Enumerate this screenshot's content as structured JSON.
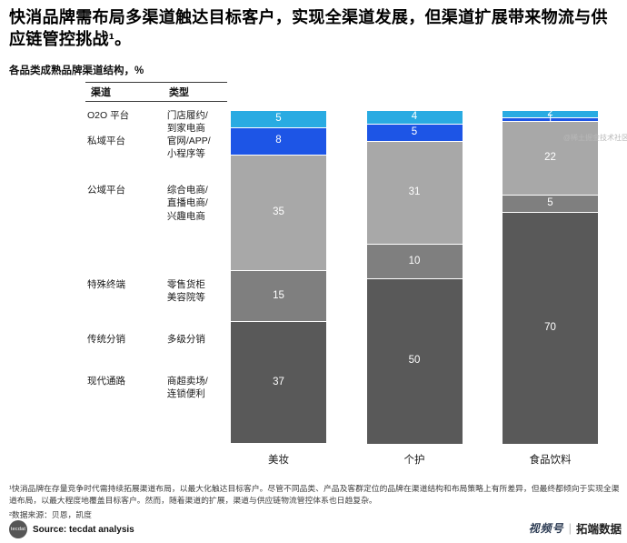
{
  "title": "快消品牌需布局多渠道触达目标客户，实现全渠道发展，但渠道扩展带来物流与供应链管控挑战¹。",
  "subtitle": "各品类成熟品牌渠道结构，%",
  "legend": {
    "header": {
      "channel": "渠道",
      "type": "类型"
    },
    "rows": [
      {
        "channel": "O2O 平台",
        "type": "门店履约/\n到家电商"
      },
      {
        "channel": "私域平台",
        "type": "官网/APP/\n小程序等"
      },
      {
        "channel": "公域平台",
        "type": "综合电商/\n直播电商/\n兴趣电商"
      },
      {
        "channel": "特殊终端",
        "type": "零售货柜\n美容院等"
      },
      {
        "channel": "传统分销",
        "type": "多级分销"
      },
      {
        "channel": "现代通路",
        "type": "商超卖场/\n连锁便利"
      }
    ]
  },
  "chart_data": {
    "type": "bar",
    "stacked": true,
    "title": "各品类成熟品牌渠道结构",
    "unit": "%",
    "ylim": [
      0,
      100
    ],
    "categories": [
      "美妆",
      "个护",
      "食品饮料"
    ],
    "series": [
      {
        "key": "o2o",
        "name": "O2O 平台",
        "color": "#29abe2",
        "values": [
          5,
          4,
          2
        ]
      },
      {
        "key": "private",
        "name": "私域平台",
        "color": "#1d55e6",
        "values": [
          8,
          5,
          1
        ]
      },
      {
        "key": "public",
        "name": "公域平台",
        "color": "#a8a8a8",
        "values": [
          35,
          31,
          22
        ]
      },
      {
        "key": "special",
        "name": "特殊终端",
        "color": "#7f7f7f",
        "values": [
          15,
          10,
          5
        ]
      },
      {
        "key": "modern",
        "name": "现代通路/传统分销",
        "color": "#595959",
        "values": [
          37,
          50,
          70
        ]
      }
    ],
    "legend_position": "left",
    "grid": false
  },
  "footnotes": {
    "note1": "¹快消品牌在存量竞争时代需持续拓展渠道布局，以最大化触达目标客户。尽管不同品类、产品及客群定位的品牌在渠道结构和布局策略上有所差异，但最终都倾向于实现全渠道布局，以最大程度地覆盖目标客户。然而，随着渠道的扩展，渠道与供应链物流管控体系也日趋复杂。",
    "note2": "²数据来源：贝恩，凯度"
  },
  "footer": {
    "logo": "tecdat",
    "source": "Source: tecdat analysis"
  },
  "watermarks": {
    "side": "@稀土掘金技术社区",
    "channel_badge": "视频号",
    "brand": "拓端数据"
  }
}
